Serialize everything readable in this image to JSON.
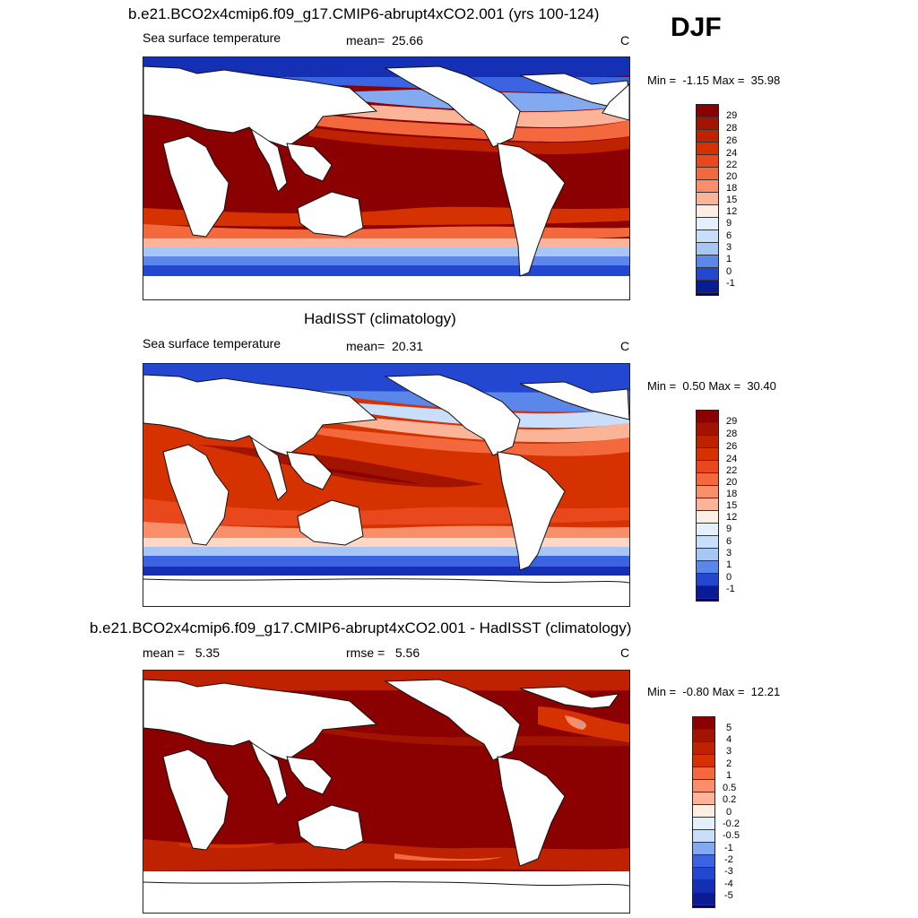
{
  "season": "DJF",
  "colors": {
    "warm": [
      "#8b0000",
      "#a31400",
      "#be2200",
      "#d63200",
      "#e8481c",
      "#f4683d",
      "#f98e6b",
      "#fcb498",
      "#fed8c3",
      "#fdeee3"
    ],
    "cool": [
      "#e4effc",
      "#c8defb",
      "#a7c6f6",
      "#83a9f1",
      "#5b86ea",
      "#3a64e1",
      "#2447d2",
      "#1630b5",
      "#0b1a95",
      "#00007a"
    ],
    "land": "#ffffff"
  },
  "panels": [
    {
      "title": "b.e21.BCO2x4cmip6.f09_g17.CMIP6-abrupt4xCO2.001 (yrs 100-124)",
      "left_label": "Sea surface temperature",
      "mean_label": "mean=",
      "mean_value": "25.66",
      "units": "C",
      "min_label": "Min =",
      "min_value": "-1.15",
      "max_label": "Max =",
      "max_value": "35.98",
      "ticks": [
        "29",
        "28",
        "26",
        "24",
        "22",
        "20",
        "18",
        "15",
        "12",
        "9",
        "6",
        "3",
        "1",
        "0",
        "-1"
      ]
    },
    {
      "title": "HadISST (climatology)",
      "left_label": "Sea surface temperature",
      "mean_label": "mean=",
      "mean_value": "20.31",
      "units": "C",
      "min_label": "Min =",
      "min_value": "0.50",
      "max_label": "Max =",
      "max_value": "30.40",
      "ticks": [
        "29",
        "28",
        "26",
        "24",
        "22",
        "20",
        "18",
        "15",
        "12",
        "9",
        "6",
        "3",
        "1",
        "0",
        "-1"
      ]
    },
    {
      "title": "b.e21.BCO2x4cmip6.f09_g17.CMIP6-abrupt4xCO2.001 - HadISST (climatology)",
      "left_label": "mean =",
      "left_value": "5.35",
      "mean_label": "rmse =",
      "mean_value": "5.56",
      "units": "C",
      "min_label": "Min =",
      "min_value": "-0.80",
      "max_label": "Max =",
      "max_value": "12.21",
      "ticks": [
        "5",
        "4",
        "3",
        "2",
        "1",
        "0.5",
        "0.2",
        "0",
        "-0.2",
        "-0.5",
        "-1",
        "-2",
        "-3",
        "-4",
        "-5"
      ]
    }
  ]
}
